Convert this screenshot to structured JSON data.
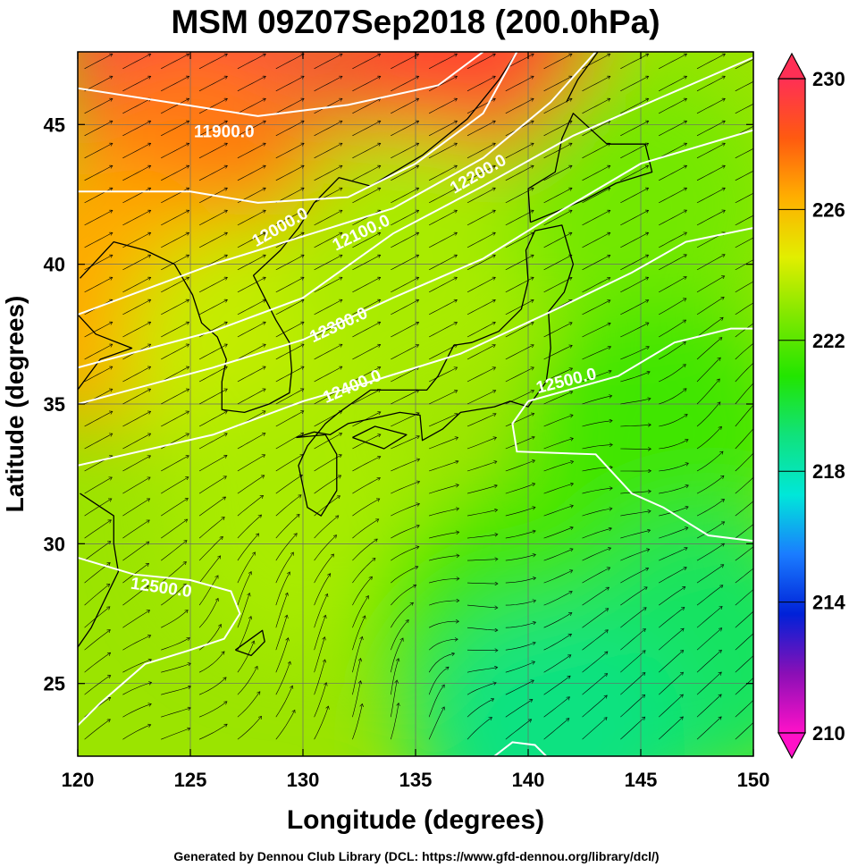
{
  "chart_data": {
    "type": "heatmap",
    "title": "MSM 09Z07Sep2018 (200.0hPa)",
    "xlabel": "Longitude (degrees)",
    "ylabel": "Latitude  (degrees)",
    "xlim": [
      120,
      150
    ],
    "ylim": [
      22.4,
      47.6
    ],
    "x_ticks": [
      120,
      125,
      130,
      135,
      140,
      145,
      150
    ],
    "y_ticks": [
      25,
      30,
      35,
      40,
      45
    ],
    "grid": true,
    "colorbar": {
      "min": 210,
      "max": 230,
      "ticks": [
        210,
        214,
        218,
        222,
        226,
        230
      ],
      "extend": "both",
      "colormap": "rainbow"
    },
    "field_points": [
      {
        "lon": 125,
        "lat": 47,
        "value": 229.5
      },
      {
        "lon": 137,
        "lat": 47,
        "value": 229.0
      },
      {
        "lon": 125,
        "lat": 43,
        "value": 227.5
      },
      {
        "lon": 121,
        "lat": 39,
        "value": 226.5
      },
      {
        "lon": 128,
        "lat": 37,
        "value": 224.0
      },
      {
        "lon": 135,
        "lat": 40,
        "value": 223.5
      },
      {
        "lon": 145,
        "lat": 42,
        "value": 222.5
      },
      {
        "lon": 130,
        "lat": 31,
        "value": 223.5
      },
      {
        "lon": 139,
        "lat": 27,
        "value": 221.5
      },
      {
        "lon": 146,
        "lat": 34,
        "value": 221.5
      },
      {
        "lon": 148,
        "lat": 26,
        "value": 219.5
      },
      {
        "lon": 141,
        "lat": 23,
        "value": 219.0
      }
    ],
    "contours": [
      {
        "label": "11900.0",
        "points": [
          [
            120,
            46.3
          ],
          [
            124,
            45.8
          ],
          [
            128,
            45.3
          ],
          [
            132,
            45.7
          ],
          [
            136,
            46.4
          ],
          [
            138,
            47.6
          ]
        ]
      },
      {
        "label": "12000.0",
        "points": [
          [
            120,
            42.6
          ],
          [
            125,
            42.6
          ],
          [
            128,
            42.2
          ],
          [
            132,
            42.4
          ],
          [
            135,
            43.6
          ],
          [
            138,
            45.4
          ],
          [
            139.5,
            47.6
          ]
        ]
      },
      {
        "label": "12100.0",
        "points": [
          [
            120,
            38.2
          ],
          [
            126,
            40.0
          ],
          [
            130,
            41.0
          ],
          [
            134,
            42.0
          ],
          [
            138,
            43.8
          ],
          [
            141,
            45.8
          ],
          [
            143,
            47.6
          ]
        ]
      },
      {
        "label": "12200.0",
        "points": [
          [
            120,
            36.3
          ],
          [
            126,
            37.6
          ],
          [
            130,
            38.8
          ],
          [
            134,
            41.1
          ],
          [
            138,
            42.8
          ],
          [
            142,
            44.6
          ],
          [
            146,
            46.0
          ],
          [
            150,
            47.4
          ]
        ]
      },
      {
        "label": "12300.0",
        "points": [
          [
            120,
            35.0
          ],
          [
            126,
            36.3
          ],
          [
            130,
            37.3
          ],
          [
            134,
            38.8
          ],
          [
            138,
            40.2
          ],
          [
            141,
            41.7
          ],
          [
            145,
            43.6
          ],
          [
            150,
            44.8
          ]
        ]
      },
      {
        "label": "12400.0",
        "points": [
          [
            120,
            32.8
          ],
          [
            126,
            33.9
          ],
          [
            130,
            35.1
          ],
          [
            133,
            35.8
          ],
          [
            137,
            36.8
          ],
          [
            141,
            38.3
          ],
          [
            144.6,
            39.7
          ],
          [
            147,
            40.8
          ],
          [
            150,
            41.3
          ]
        ]
      },
      {
        "label": "12500.0",
        "points": [
          [
            140,
            35.1
          ],
          [
            144,
            36.0
          ],
          [
            146.5,
            37.2
          ],
          [
            149,
            37.7
          ],
          [
            150,
            37.7
          ]
        ]
      },
      {
        "label": "",
        "points": [
          [
            140,
            35.1
          ],
          [
            139.3,
            34.3
          ],
          [
            139.5,
            33.3
          ],
          [
            143,
            33.2
          ],
          [
            144.6,
            31.8
          ],
          [
            146,
            31.3
          ],
          [
            148,
            30.3
          ],
          [
            150,
            30.1
          ]
        ]
      },
      {
        "label": "12500.0",
        "points": [
          [
            120,
            29.5
          ],
          [
            122.5,
            28.9
          ],
          [
            125,
            28.7
          ],
          [
            126.8,
            28.3
          ],
          [
            127.2,
            27.5
          ],
          [
            126.5,
            26.6
          ],
          [
            125,
            26.2
          ],
          [
            123,
            25.7
          ],
          [
            121,
            24.3
          ],
          [
            120,
            23.5
          ]
        ]
      },
      {
        "label": "",
        "points": [
          [
            138.5,
            22.4
          ],
          [
            139.3,
            22.9
          ],
          [
            140.3,
            22.8
          ],
          [
            140.8,
            22.4
          ]
        ]
      }
    ],
    "contour_labels": [
      {
        "text": "11900.0",
        "lon": 126.5,
        "lat": 44.7,
        "angle": 0
      },
      {
        "text": "12000.0",
        "lon": 129.0,
        "lat": 41.3,
        "angle": -30
      },
      {
        "text": "12100.0",
        "lon": 132.6,
        "lat": 41.1,
        "angle": -26
      },
      {
        "text": "12200.0",
        "lon": 137.8,
        "lat": 43.2,
        "angle": -30
      },
      {
        "text": "12300.0",
        "lon": 131.6,
        "lat": 37.8,
        "angle": -25
      },
      {
        "text": "12400.0",
        "lon": 132.2,
        "lat": 35.6,
        "angle": -23
      },
      {
        "text": "12500.0",
        "lon": 141.7,
        "lat": 35.8,
        "angle": -14
      },
      {
        "text": "12500.0",
        "lon": 123.7,
        "lat": 28.4,
        "angle": 8
      }
    ],
    "colors": {
      "stops": [
        "#ff11c8",
        "#8a0fb6",
        "#0021d8",
        "#1a7cff",
        "#00e7d9",
        "#10e27c",
        "#22e500",
        "#7fe800",
        "#e2ee00",
        "#ffaf00",
        "#ff5a10",
        "#ff2f55"
      ],
      "contour": "#ffffff",
      "streamline": "#000000",
      "coast": "#000000"
    }
  },
  "footer": "Generated by Dennou Club Library (DCL: https://www.gfd-dennou.org/library/dcl/)"
}
